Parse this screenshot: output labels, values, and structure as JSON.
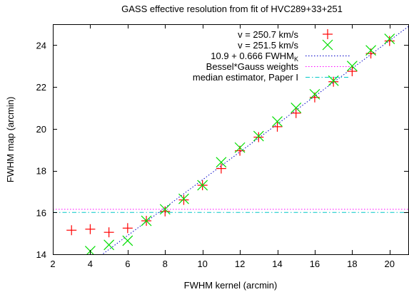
{
  "chart_data": {
    "type": "scatter",
    "title": "GASS effective resolution from fit of HVC289+33+251",
    "xlabel": "FWHM kernel (arcmin)",
    "ylabel": "FWHM map (arcmin)",
    "xlim": [
      2,
      21
    ],
    "ylim": [
      14,
      25
    ],
    "xticks": [
      2,
      4,
      6,
      8,
      10,
      12,
      14,
      16,
      18,
      20
    ],
    "yticks": [
      14,
      16,
      18,
      20,
      22,
      24
    ],
    "grid": false,
    "legend_position": "top-right",
    "series": [
      {
        "name": "v = 250.7 km/s",
        "marker": "plus",
        "color": "#ff0000",
        "x": [
          3,
          4,
          5,
          6,
          7,
          8,
          9,
          10,
          11,
          12,
          13,
          14,
          15,
          16,
          17,
          18,
          19,
          20
        ],
        "y": [
          15.15,
          15.2,
          15.05,
          15.25,
          15.6,
          16.05,
          16.6,
          17.3,
          18.1,
          18.95,
          19.6,
          20.1,
          20.75,
          21.5,
          22.25,
          22.75,
          23.6,
          24.2
        ]
      },
      {
        "name": "v = 251.5 km/s",
        "marker": "cross",
        "color": "#00dd00",
        "x": [
          4,
          5,
          6,
          7,
          8,
          9,
          10,
          11,
          12,
          13,
          14,
          15,
          16,
          17,
          18,
          19,
          20
        ],
        "y": [
          14.15,
          14.45,
          14.65,
          15.6,
          16.15,
          16.65,
          17.3,
          18.4,
          19.1,
          19.65,
          20.35,
          21.0,
          21.65,
          22.3,
          23.0,
          23.75,
          24.3
        ]
      }
    ],
    "lines": [
      {
        "name": "10.9 + 0.666 FWHM",
        "name_subscript": "K",
        "style": "dotted",
        "color": "#0000c8",
        "intercept": 10.9,
        "slope": 0.666
      },
      {
        "name": "Bessel*Gauss weights",
        "style": "dotted",
        "color": "#ff00ff",
        "value": 16.15
      },
      {
        "name": "median estimator, Paper I",
        "style": "dash-dot",
        "color": "#00c8c8",
        "value": 16.0
      }
    ]
  }
}
